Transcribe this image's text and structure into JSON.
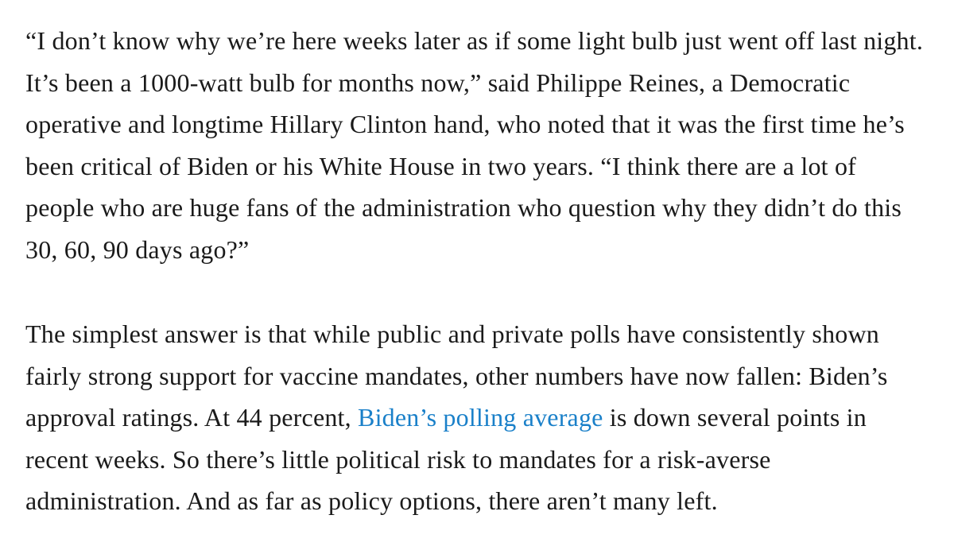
{
  "page": {
    "background_color": "#ffffff",
    "text_color": "#1a1a1a",
    "link_color": "#1a80c9"
  },
  "article": {
    "paragraphs": [
      {
        "segments": [
          {
            "type": "text",
            "text": "“I don’t know why we’re here weeks later as if some light bulb just went off last night. It’s been a 1000-watt bulb for months now,” said Philippe Reines, a Democratic operative and longtime Hillary Clinton hand, who noted that it was the first time he’s been critical of Biden or his White House in two years. “I think there are a lot of people who are huge fans of the administration who question why they didn’t do this 30, 60, 90 days ago?”"
          }
        ]
      },
      {
        "segments": [
          {
            "type": "text",
            "text": "The simplest answer is that while public and private polls have consistently shown fairly strong support for vaccine mandates, other numbers have now fallen: Biden’s approval ratings. At 44 percent, "
          },
          {
            "type": "link",
            "text": "Biden’s polling average"
          },
          {
            "type": "text",
            "text": " is down several points in recent weeks. So there’s little political risk to mandates for a risk-averse administration. And as far as policy options, there aren’t many left."
          }
        ]
      }
    ]
  }
}
